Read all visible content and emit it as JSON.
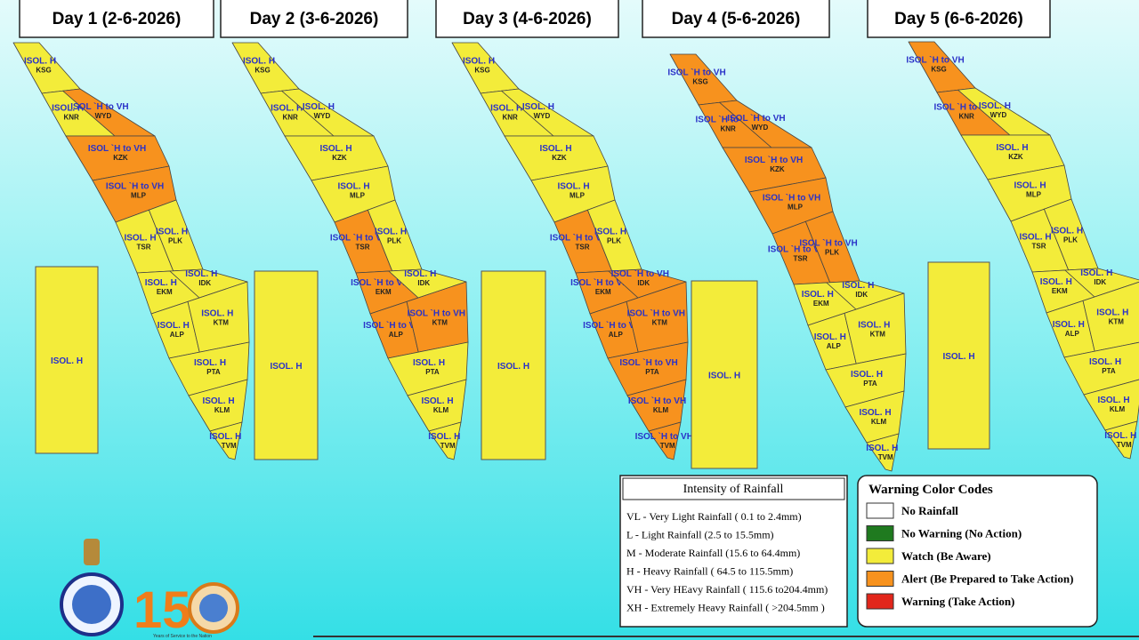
{
  "days": [
    {
      "title": "Day 1 (2-6-2026)",
      "districts": [
        {
          "code": "KSG",
          "warning": "ISOL. H",
          "color": "#f3ec3a"
        },
        {
          "code": "KNR",
          "warning": "ISOL. H",
          "color": "#f3ec3a"
        },
        {
          "code": "WYD",
          "warning": "ISOL `H to VH",
          "color": "#f7921e"
        },
        {
          "code": "KZK",
          "warning": "ISOL `H to VH",
          "color": "#f7921e"
        },
        {
          "code": "MLP",
          "warning": "ISOL `H to VH",
          "color": "#f7921e"
        },
        {
          "code": "TSR",
          "warning": "ISOL. H",
          "color": "#f3ec3a"
        },
        {
          "code": "PLK",
          "warning": "ISOL. H",
          "color": "#f3ec3a"
        },
        {
          "code": "EKM",
          "warning": "ISOL. H",
          "color": "#f3ec3a"
        },
        {
          "code": "IDK",
          "warning": "ISOL. H",
          "color": "#f3ec3a"
        },
        {
          "code": "ALP",
          "warning": "ISOL. H",
          "color": "#f3ec3a"
        },
        {
          "code": "KTM",
          "warning": "ISOL. H",
          "color": "#f3ec3a"
        },
        {
          "code": "PTA",
          "warning": "ISOL. H",
          "color": "#f3ec3a"
        },
        {
          "code": "KLM",
          "warning": "ISOL. H",
          "color": "#f3ec3a"
        },
        {
          "code": "TVM",
          "warning": "ISOL. H",
          "color": "#f3ec3a"
        }
      ],
      "lakshadweep": {
        "warning": "ISOL. H",
        "color": "#f3ec3a"
      }
    },
    {
      "title": "Day 2 (3-6-2026)",
      "districts": [
        {
          "code": "KSG",
          "warning": "ISOL. H",
          "color": "#f3ec3a"
        },
        {
          "code": "KNR",
          "warning": "ISOL. H",
          "color": "#f3ec3a"
        },
        {
          "code": "WYD",
          "warning": "ISOL. H",
          "color": "#f3ec3a"
        },
        {
          "code": "KZK",
          "warning": "ISOL. H",
          "color": "#f3ec3a"
        },
        {
          "code": "MLP",
          "warning": "ISOL. H",
          "color": "#f3ec3a"
        },
        {
          "code": "TSR",
          "warning": "ISOL `H to VH",
          "color": "#f7921e"
        },
        {
          "code": "PLK",
          "warning": "ISOL. H",
          "color": "#f3ec3a"
        },
        {
          "code": "EKM",
          "warning": "ISOL `H to VH",
          "color": "#f7921e"
        },
        {
          "code": "IDK",
          "warning": "ISOL. H",
          "color": "#f3ec3a"
        },
        {
          "code": "ALP",
          "warning": "ISOL `H to VH",
          "color": "#f7921e"
        },
        {
          "code": "KTM",
          "warning": "ISOL `H to VH",
          "color": "#f7921e"
        },
        {
          "code": "PTA",
          "warning": "ISOL. H",
          "color": "#f3ec3a"
        },
        {
          "code": "KLM",
          "warning": "ISOL. H",
          "color": "#f3ec3a"
        },
        {
          "code": "TVM",
          "warning": "ISOL. H",
          "color": "#f3ec3a"
        }
      ],
      "lakshadweep": {
        "warning": "ISOL. H",
        "color": "#f3ec3a"
      }
    },
    {
      "title": "Day 3 (4-6-2026)",
      "districts": [
        {
          "code": "KSG",
          "warning": "ISOL. H",
          "color": "#f3ec3a"
        },
        {
          "code": "KNR",
          "warning": "ISOL. H",
          "color": "#f3ec3a"
        },
        {
          "code": "WYD",
          "warning": "ISOL. H",
          "color": "#f3ec3a"
        },
        {
          "code": "KZK",
          "warning": "ISOL. H",
          "color": "#f3ec3a"
        },
        {
          "code": "MLP",
          "warning": "ISOL. H",
          "color": "#f3ec3a"
        },
        {
          "code": "TSR",
          "warning": "ISOL `H to VH",
          "color": "#f7921e"
        },
        {
          "code": "PLK",
          "warning": "ISOL. H",
          "color": "#f3ec3a"
        },
        {
          "code": "EKM",
          "warning": "ISOL `H to VH",
          "color": "#f7921e"
        },
        {
          "code": "IDK",
          "warning": "ISOL `H to VH",
          "color": "#f7921e"
        },
        {
          "code": "ALP",
          "warning": "ISOL `H to VH",
          "color": "#f7921e"
        },
        {
          "code": "KTM",
          "warning": "ISOL `H to VH",
          "color": "#f7921e"
        },
        {
          "code": "PTA",
          "warning": "ISOL `H to VH",
          "color": "#f7921e"
        },
        {
          "code": "KLM",
          "warning": "ISOL `H to VH",
          "color": "#f7921e"
        },
        {
          "code": "TVM",
          "warning": "ISOL `H to VH",
          "color": "#f7921e"
        }
      ],
      "lakshadweep": {
        "warning": "ISOL. H",
        "color": "#f3ec3a"
      }
    },
    {
      "title": "Day 4 (5-6-2026)",
      "districts": [
        {
          "code": "KSG",
          "warning": "ISOL `H to VH",
          "color": "#f7921e"
        },
        {
          "code": "KNR",
          "warning": "ISOL `H to VH",
          "color": "#f7921e"
        },
        {
          "code": "WYD",
          "warning": "ISOL `H to VH",
          "color": "#f7921e"
        },
        {
          "code": "KZK",
          "warning": "ISOL `H to VH",
          "color": "#f7921e"
        },
        {
          "code": "MLP",
          "warning": "ISOL `H to VH",
          "color": "#f7921e"
        },
        {
          "code": "TSR",
          "warning": "ISOL `H to VH",
          "color": "#f7921e"
        },
        {
          "code": "PLK",
          "warning": "ISOL `H to VH",
          "color": "#f7921e"
        },
        {
          "code": "EKM",
          "warning": "ISOL. H",
          "color": "#f3ec3a"
        },
        {
          "code": "IDK",
          "warning": "ISOL. H",
          "color": "#f3ec3a"
        },
        {
          "code": "ALP",
          "warning": "ISOL. H",
          "color": "#f3ec3a"
        },
        {
          "code": "KTM",
          "warning": "ISOL. H",
          "color": "#f3ec3a"
        },
        {
          "code": "PTA",
          "warning": "ISOL. H",
          "color": "#f3ec3a"
        },
        {
          "code": "KLM",
          "warning": "ISOL. H",
          "color": "#f3ec3a"
        },
        {
          "code": "TVM",
          "warning": "ISOL. H",
          "color": "#f3ec3a"
        }
      ],
      "lakshadweep": {
        "warning": "ISOL. H",
        "color": "#f3ec3a"
      }
    },
    {
      "title": "Day 5 (6-6-2026)",
      "districts": [
        {
          "code": "KSG",
          "warning": "ISOL `H to VH",
          "color": "#f7921e"
        },
        {
          "code": "KNR",
          "warning": "ISOL `H to VH",
          "color": "#f7921e"
        },
        {
          "code": "WYD",
          "warning": "ISOL. H",
          "color": "#f3ec3a"
        },
        {
          "code": "KZK",
          "warning": "ISOL. H",
          "color": "#f3ec3a"
        },
        {
          "code": "MLP",
          "warning": "ISOL. H",
          "color": "#f3ec3a"
        },
        {
          "code": "TSR",
          "warning": "ISOL. H",
          "color": "#f3ec3a"
        },
        {
          "code": "PLK",
          "warning": "ISOL. H",
          "color": "#f3ec3a"
        },
        {
          "code": "EKM",
          "warning": "ISOL. H",
          "color": "#f3ec3a"
        },
        {
          "code": "IDK",
          "warning": "ISOL. H",
          "color": "#f3ec3a"
        },
        {
          "code": "ALP",
          "warning": "ISOL. H",
          "color": "#f3ec3a"
        },
        {
          "code": "KTM",
          "warning": "ISOL. H",
          "color": "#f3ec3a"
        },
        {
          "code": "PTA",
          "warning": "ISOL. H",
          "color": "#f3ec3a"
        },
        {
          "code": "KLM",
          "warning": "ISOL. H",
          "color": "#f3ec3a"
        },
        {
          "code": "TVM",
          "warning": "ISOL. H",
          "color": "#f3ec3a"
        }
      ],
      "lakshadweep": {
        "warning": "ISOL. H",
        "color": "#f3ec3a"
      }
    }
  ],
  "intensity_legend": {
    "title": "Intensity of Rainfall",
    "items": [
      "VL - Very Light Rainfall ( 0.1 to 2.4mm)",
      "L  - Light Rainfall (2.5 to 15.5mm)",
      "M  - Moderate Rainfall (15.6 to 64.4mm)",
      "H  - Heavy Rainfall ( 64.5 to 115.5mm)",
      "VH - Very HEavy Rainfall ( 115.6 to204.4mm)",
      "XH - Extremely Heavy Rainfall ( >204.5mm )"
    ]
  },
  "warning_legend": {
    "title": "Warning Color Codes",
    "items": [
      {
        "label": "No Rainfall",
        "color": "#ffffff"
      },
      {
        "label": "No Warning (No Action)",
        "color": "#1f7a1f"
      },
      {
        "label": "Watch (Be Aware)",
        "color": "#f3ec3a"
      },
      {
        "label": "Alert (Be Prepared to Take Action)",
        "color": "#f7921e"
      },
      {
        "label": "Warning (Take Action)",
        "color": "#e2261b"
      }
    ]
  },
  "logo": {
    "number": "150",
    "tagline": "Years of Service to the Nation"
  }
}
